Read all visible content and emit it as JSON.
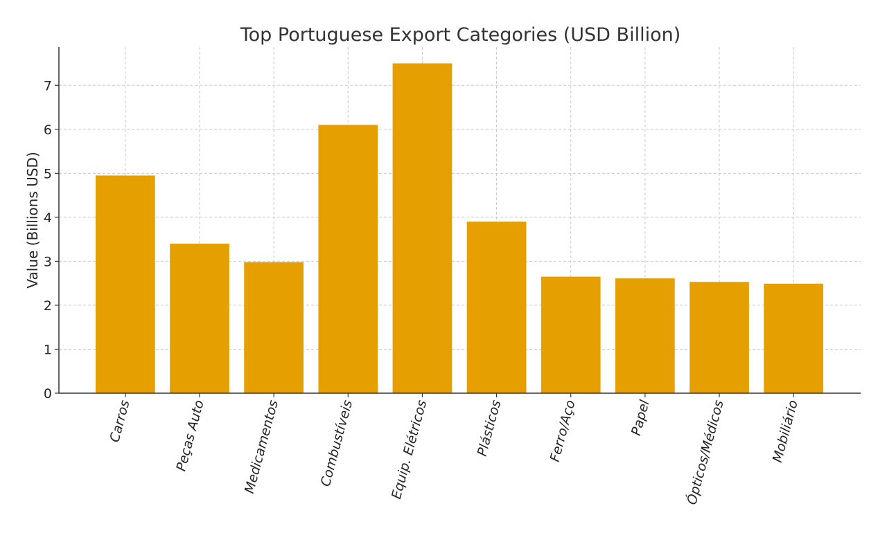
{
  "chart_data": {
    "type": "bar",
    "title": "Top Portuguese Export Categories (USD Billion)",
    "xlabel": "",
    "ylabel": "Value (Billions USD)",
    "categories": [
      "Carros",
      "Peças Auto",
      "Medicamentos",
      "Combustíveis",
      "Equip. Elétricos",
      "Plásticos",
      "Ferro/Aço",
      "Papel",
      "Ópticos/Médicos",
      "Mobiliário"
    ],
    "values": [
      4.95,
      3.4,
      2.98,
      6.1,
      7.5,
      3.9,
      2.65,
      2.61,
      2.53,
      2.49
    ],
    "yticks": [
      "0",
      "1",
      "2",
      "3",
      "4",
      "5",
      "6",
      "7"
    ],
    "ylim": [
      0,
      7.87
    ],
    "grid": true,
    "bar_color": "#E69F00"
  }
}
